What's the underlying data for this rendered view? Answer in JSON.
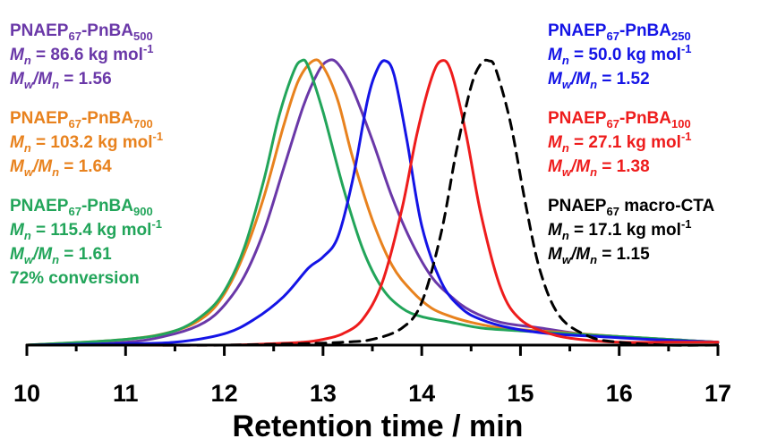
{
  "chart_data": {
    "type": "line",
    "title": "",
    "xlabel": "Retention time / min",
    "ylabel": "",
    "xlim": [
      10,
      17
    ],
    "xticks": [
      "10",
      "11",
      "12",
      "13",
      "14",
      "15",
      "16",
      "17"
    ],
    "grid": false,
    "legend": "annotations beside peaks",
    "series": [
      {
        "name": "PNAEP67-PnBA500",
        "color": "#6a38a8",
        "x": [
          10.0,
          11.0,
          11.5,
          11.8,
          12.0,
          12.2,
          12.4,
          12.6,
          12.8,
          12.95,
          13.05,
          13.15,
          13.3,
          13.5,
          13.7,
          13.9,
          14.1,
          14.3,
          14.5,
          14.8,
          15.2,
          15.6,
          16.0,
          16.5,
          17.0
        ],
        "y": [
          0.0,
          0.01,
          0.04,
          0.08,
          0.14,
          0.24,
          0.4,
          0.62,
          0.84,
          0.96,
          1.0,
          0.99,
          0.9,
          0.72,
          0.52,
          0.36,
          0.24,
          0.17,
          0.12,
          0.08,
          0.06,
          0.04,
          0.03,
          0.02,
          0.01
        ]
      },
      {
        "name": "PNAEP67-PnBA700",
        "color": "#e8821e",
        "x": [
          10.0,
          11.0,
          11.5,
          11.8,
          12.0,
          12.2,
          12.4,
          12.6,
          12.75,
          12.9,
          13.0,
          13.15,
          13.3,
          13.5,
          13.7,
          13.9,
          14.1,
          14.3,
          14.5,
          14.8,
          15.2,
          15.6,
          16.0,
          16.5,
          17.0
        ],
        "y": [
          0.0,
          0.02,
          0.05,
          0.1,
          0.18,
          0.32,
          0.52,
          0.77,
          0.93,
          1.0,
          0.98,
          0.86,
          0.66,
          0.44,
          0.28,
          0.19,
          0.13,
          0.1,
          0.08,
          0.06,
          0.05,
          0.04,
          0.03,
          0.02,
          0.01
        ]
      },
      {
        "name": "PNAEP67-PnBA900",
        "color": "#22a55a",
        "x": [
          10.0,
          11.0,
          11.5,
          11.8,
          12.0,
          12.2,
          12.4,
          12.55,
          12.7,
          12.78,
          12.85,
          13.0,
          13.2,
          13.4,
          13.6,
          13.8,
          14.0,
          14.3,
          14.6,
          15.0,
          15.5,
          16.0,
          16.5,
          17.0
        ],
        "y": [
          0.0,
          0.02,
          0.05,
          0.11,
          0.19,
          0.34,
          0.58,
          0.8,
          0.96,
          1.0,
          0.98,
          0.82,
          0.56,
          0.34,
          0.2,
          0.13,
          0.1,
          0.08,
          0.06,
          0.05,
          0.04,
          0.03,
          0.02,
          0.01
        ]
      },
      {
        "name": "PNAEP67-PnBA250",
        "color": "#1414e6",
        "x": [
          10.0,
          11.0,
          11.5,
          12.0,
          12.3,
          12.6,
          12.85,
          13.0,
          13.15,
          13.3,
          13.45,
          13.55,
          13.63,
          13.72,
          13.85,
          14.0,
          14.2,
          14.4,
          14.6,
          14.9,
          15.3,
          15.8,
          16.3,
          17.0
        ],
        "y": [
          0.0,
          0.005,
          0.01,
          0.04,
          0.09,
          0.17,
          0.27,
          0.31,
          0.38,
          0.58,
          0.86,
          0.97,
          1.0,
          0.95,
          0.72,
          0.42,
          0.22,
          0.13,
          0.09,
          0.06,
          0.04,
          0.03,
          0.02,
          0.01
        ]
      },
      {
        "name": "PNAEP67-PnBA100",
        "color": "#ee1c1c",
        "x": [
          10.0,
          11.0,
          12.0,
          12.5,
          12.8,
          13.0,
          13.2,
          13.4,
          13.6,
          13.8,
          13.95,
          14.1,
          14.2,
          14.3,
          14.45,
          14.6,
          14.8,
          15.0,
          15.3,
          15.6,
          16.0,
          16.5,
          17.0
        ],
        "y": [
          0.0,
          0.0,
          0.0,
          0.005,
          0.01,
          0.02,
          0.04,
          0.09,
          0.22,
          0.48,
          0.74,
          0.94,
          1.0,
          0.96,
          0.74,
          0.46,
          0.2,
          0.09,
          0.04,
          0.02,
          0.01,
          0.01,
          0.01
        ]
      },
      {
        "name": "PNAEP67 macro-CTA",
        "color": "#000000",
        "dashed": true,
        "x": [
          10.0,
          11.0,
          12.0,
          12.8,
          13.2,
          13.5,
          13.8,
          14.0,
          14.2,
          14.35,
          14.5,
          14.6,
          14.68,
          14.75,
          14.9,
          15.05,
          15.2,
          15.4,
          15.7,
          16.0,
          16.5,
          17.0
        ],
        "y": [
          0.0,
          0.0,
          0.0,
          0.005,
          0.01,
          0.02,
          0.06,
          0.15,
          0.4,
          0.68,
          0.91,
          0.99,
          1.0,
          0.97,
          0.78,
          0.5,
          0.26,
          0.1,
          0.03,
          0.01,
          0.0,
          0.0
        ]
      }
    ],
    "annotations": [
      {
        "series": "PNAEP67-PnBA500",
        "color": "#6a38a8",
        "name_main": "PNAEP",
        "name_sub1": "67",
        "name_mid": "-PnBA",
        "name_sub2": "500",
        "mn_value": "= 86.6 kg mol",
        "mn_exp": "-1",
        "dispersity": "= 1.56"
      },
      {
        "series": "PNAEP67-PnBA700",
        "color": "#e8821e",
        "name_main": "PNAEP",
        "name_sub1": "67",
        "name_mid": "-PnBA",
        "name_sub2": "700",
        "mn_value": "= 103.2 kg mol",
        "mn_exp": "-1",
        "dispersity": "= 1.64"
      },
      {
        "series": "PNAEP67-PnBA900",
        "color": "#22a55a",
        "name_main": "PNAEP",
        "name_sub1": "67",
        "name_mid": "-PnBA",
        "name_sub2": "900",
        "mn_value": "= 115.4 kg mol",
        "mn_exp": "-1",
        "dispersity": "= 1.61",
        "extra": "72% conversion"
      },
      {
        "series": "PNAEP67-PnBA250",
        "color": "#1414e6",
        "name_main": "PNAEP",
        "name_sub1": "67",
        "name_mid": "-PnBA",
        "name_sub2": "250",
        "mn_value": "= 50.0 kg mol",
        "mn_exp": "-1",
        "dispersity": "= 1.52"
      },
      {
        "series": "PNAEP67-PnBA100",
        "color": "#ee1c1c",
        "name_main": "PNAEP",
        "name_sub1": "67",
        "name_mid": "-PnBA",
        "name_sub2": "100",
        "mn_value": "= 27.1 kg mol",
        "mn_exp": "-1",
        "dispersity": "= 1.38"
      },
      {
        "series": "PNAEP67 macro-CTA",
        "color": "#000000",
        "name_main": "PNAEP",
        "name_sub1": "67",
        "name_mid": " macro-CTA",
        "name_sub2": "",
        "mn_value": "= 17.1 kg mol",
        "mn_exp": "-1",
        "dispersity": "= 1.15"
      }
    ],
    "symbols": {
      "mn_M": "M",
      "mn_sub": "n",
      "mw_M": "M",
      "mw_sub": "w",
      "slash": "/"
    }
  }
}
